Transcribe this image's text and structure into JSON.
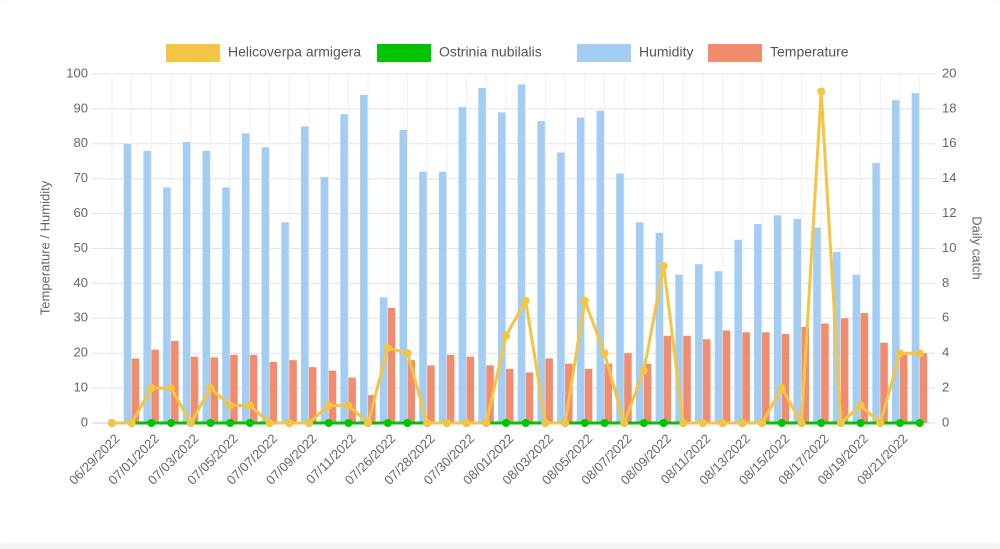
{
  "chart_data": {
    "type": "bar-line",
    "y_label": "Temperature / Humidity",
    "y2_label": "Daily catch",
    "categories": [
      "06/29/2022",
      null,
      "07/01/2022",
      null,
      "07/03/2022",
      null,
      "07/05/2022",
      null,
      "07/07/2022",
      null,
      "07/09/2022",
      null,
      "07/11/2022",
      null,
      "07/26/2022",
      null,
      "07/28/2022",
      null,
      "07/30/2022",
      null,
      "08/01/2022",
      null,
      "08/03/2022",
      null,
      "08/05/2022",
      null,
      "08/07/2022",
      null,
      "08/09/2022",
      null,
      "08/11/2022",
      null,
      "08/13/2022",
      null,
      "08/15/2022",
      null,
      "08/17/2022",
      null,
      "08/19/2022",
      null,
      "08/21/2022",
      null
    ],
    "series": [
      {
        "name": "Helicoverpa armigera",
        "color": "#f4c542",
        "kind": "line",
        "axis": "y2",
        "values": [
          0,
          0,
          2,
          2,
          0,
          2,
          1,
          1,
          0,
          0,
          0,
          1,
          1,
          0,
          4.3,
          4,
          0,
          0,
          0,
          0,
          5,
          7,
          0,
          0,
          7,
          4,
          0,
          3,
          9,
          0,
          0,
          0,
          0,
          0,
          2,
          0,
          19,
          0,
          1,
          0,
          4,
          4
        ]
      },
      {
        "name": "Ostrinia nubilalis",
        "color": "#00c400",
        "kind": "line",
        "axis": "y2",
        "values": [
          0,
          0,
          0,
          0,
          0,
          0,
          0,
          0,
          0,
          0,
          0,
          0,
          0,
          0,
          0,
          0,
          0,
          0,
          0,
          0,
          0,
          0,
          0,
          0,
          0,
          0,
          0,
          0,
          0,
          0,
          0,
          0,
          0,
          0,
          0,
          0,
          0,
          0,
          0,
          0,
          0,
          0
        ]
      },
      {
        "name": "Humidity",
        "color": "#a4cdf4",
        "kind": "bar",
        "values": [
          null,
          80,
          78,
          67.5,
          80.5,
          78,
          67.5,
          83,
          79,
          57.5,
          85,
          70.5,
          88.5,
          94,
          36,
          84,
          72,
          72,
          90.5,
          96,
          89,
          97,
          86.5,
          77.5,
          87.5,
          89.5,
          71.5,
          57.5,
          54.5,
          42.5,
          45.5,
          43.5,
          52.5,
          57,
          59.5,
          58.5,
          56,
          49,
          42.5,
          74.5,
          92.5,
          94.5
        ]
      },
      {
        "name": "Temperature",
        "color": "#f28c6f",
        "kind": "bar",
        "values": [
          null,
          18.5,
          21,
          23.5,
          19,
          18.8,
          19.5,
          19.5,
          17.5,
          18,
          16,
          15,
          13,
          8,
          33,
          18,
          16.5,
          19.5,
          19,
          16.5,
          15.5,
          14.5,
          18.5,
          17,
          15.5,
          17,
          20,
          17,
          25,
          25,
          24,
          26.5,
          26,
          26,
          25.5,
          27.5,
          28.5,
          30,
          31.5,
          23,
          19.5,
          20
        ]
      }
    ],
    "ylim": [
      0,
      100
    ],
    "yticks": [
      0,
      10,
      20,
      30,
      40,
      50,
      60,
      70,
      80,
      90,
      100
    ],
    "y2lim": [
      0,
      20
    ],
    "y2ticks": [
      0,
      2,
      4,
      6,
      8,
      10,
      12,
      14,
      16,
      18,
      20
    ],
    "grid": true,
    "legend": "top"
  }
}
